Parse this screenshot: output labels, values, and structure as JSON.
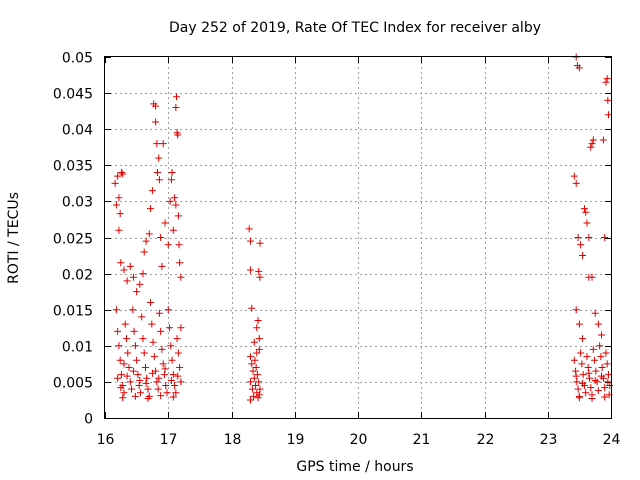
{
  "chart_data": {
    "type": "scatter",
    "title": "Day 252 of 2019, Rate Of TEC Index for receiver alby",
    "xlabel": "GPS time / hours",
    "ylabel": "ROTI / TECUs",
    "xlim": [
      16,
      24
    ],
    "ylim": [
      0,
      0.05
    ],
    "xticks": [
      "16",
      "17",
      "18",
      "19",
      "20",
      "21",
      "22",
      "23",
      "24"
    ],
    "yticks": [
      "0",
      "0.005",
      "0.01",
      "0.015",
      "0.02",
      "0.025",
      "0.03",
      "0.035",
      "0.04",
      "0.045",
      "0.05"
    ],
    "grid": true,
    "marker": "+",
    "marker_color": "#e00000",
    "series": [
      {
        "name": "ROTI",
        "points": [
          [
            16.16,
            0.0325
          ],
          [
            16.18,
            0.0295
          ],
          [
            16.2,
            0.0335
          ],
          [
            16.22,
            0.0305
          ],
          [
            16.24,
            0.0283
          ],
          [
            16.26,
            0.034
          ],
          [
            16.28,
            0.0338
          ],
          [
            16.22,
            0.026
          ],
          [
            16.25,
            0.0215
          ],
          [
            16.3,
            0.0205
          ],
          [
            16.35,
            0.019
          ],
          [
            16.4,
            0.021
          ],
          [
            16.45,
            0.0195
          ],
          [
            16.5,
            0.0175
          ],
          [
            16.55,
            0.0185
          ],
          [
            16.6,
            0.02
          ],
          [
            16.62,
            0.023
          ],
          [
            16.65,
            0.0245
          ],
          [
            16.7,
            0.0255
          ],
          [
            16.72,
            0.029
          ],
          [
            16.75,
            0.0315
          ],
          [
            16.77,
            0.0435
          ],
          [
            16.8,
            0.0432
          ],
          [
            16.8,
            0.041
          ],
          [
            16.82,
            0.038
          ],
          [
            16.85,
            0.036
          ],
          [
            16.83,
            0.034
          ],
          [
            16.86,
            0.033
          ],
          [
            16.88,
            0.025
          ],
          [
            16.9,
            0.021
          ],
          [
            16.92,
            0.038
          ],
          [
            16.95,
            0.027
          ],
          [
            17.0,
            0.024
          ],
          [
            17.03,
            0.03
          ],
          [
            17.05,
            0.033
          ],
          [
            17.06,
            0.034
          ],
          [
            17.08,
            0.026
          ],
          [
            17.1,
            0.0305
          ],
          [
            17.12,
            0.0295
          ],
          [
            17.12,
            0.043
          ],
          [
            17.13,
            0.0445
          ],
          [
            17.14,
            0.0395
          ],
          [
            17.15,
            0.0392
          ],
          [
            17.16,
            0.028
          ],
          [
            17.17,
            0.024
          ],
          [
            17.18,
            0.0215
          ],
          [
            17.2,
            0.0195
          ],
          [
            17.2,
            0.0125
          ],
          [
            16.18,
            0.015
          ],
          [
            16.2,
            0.012
          ],
          [
            16.22,
            0.01
          ],
          [
            16.24,
            0.008
          ],
          [
            16.26,
            0.006
          ],
          [
            16.28,
            0.0045
          ],
          [
            16.3,
            0.0035
          ],
          [
            16.32,
            0.013
          ],
          [
            16.34,
            0.011
          ],
          [
            16.36,
            0.009
          ],
          [
            16.38,
            0.007
          ],
          [
            16.4,
            0.005
          ],
          [
            16.42,
            0.004
          ],
          [
            16.44,
            0.015
          ],
          [
            16.46,
            0.012
          ],
          [
            16.48,
            0.01
          ],
          [
            16.5,
            0.008
          ],
          [
            16.52,
            0.006
          ],
          [
            16.54,
            0.0045
          ],
          [
            16.56,
            0.0035
          ],
          [
            16.58,
            0.014
          ],
          [
            16.6,
            0.011
          ],
          [
            16.62,
            0.009
          ],
          [
            16.64,
            0.007
          ],
          [
            16.66,
            0.0055
          ],
          [
            16.68,
            0.004
          ],
          [
            16.7,
            0.003
          ],
          [
            16.72,
            0.016
          ],
          [
            16.74,
            0.013
          ],
          [
            16.76,
            0.0105
          ],
          [
            16.78,
            0.0085
          ],
          [
            16.8,
            0.0065
          ],
          [
            16.82,
            0.005
          ],
          [
            16.84,
            0.004
          ],
          [
            16.86,
            0.0145
          ],
          [
            16.88,
            0.012
          ],
          [
            16.9,
            0.0095
          ],
          [
            16.92,
            0.0075
          ],
          [
            16.94,
            0.006
          ],
          [
            16.96,
            0.0045
          ],
          [
            16.98,
            0.0035
          ],
          [
            17.0,
            0.015
          ],
          [
            17.02,
            0.0125
          ],
          [
            17.04,
            0.01
          ],
          [
            17.06,
            0.008
          ],
          [
            17.08,
            0.006
          ],
          [
            17.1,
            0.0045
          ],
          [
            17.12,
            0.0035
          ],
          [
            17.14,
            0.011
          ],
          [
            17.16,
            0.009
          ],
          [
            17.18,
            0.007
          ],
          [
            17.2,
            0.005
          ],
          [
            16.2,
            0.0055
          ],
          [
            16.25,
            0.0042
          ],
          [
            16.3,
            0.0075
          ],
          [
            16.35,
            0.0058
          ],
          [
            16.45,
            0.0065
          ],
          [
            16.55,
            0.0052
          ],
          [
            16.65,
            0.0048
          ],
          [
            16.75,
            0.0062
          ],
          [
            16.85,
            0.0055
          ],
          [
            16.95,
            0.0068
          ],
          [
            17.05,
            0.0052
          ],
          [
            17.15,
            0.0058
          ],
          [
            16.28,
            0.0028
          ],
          [
            16.48,
            0.003
          ],
          [
            16.68,
            0.0027
          ],
          [
            16.88,
            0.0031
          ],
          [
            17.08,
            0.0029
          ],
          [
            18.28,
            0.0262
          ],
          [
            18.3,
            0.0245
          ],
          [
            18.3,
            0.0205
          ],
          [
            18.32,
            0.0152
          ],
          [
            18.45,
            0.0242
          ],
          [
            18.43,
            0.0203
          ],
          [
            18.45,
            0.0195
          ],
          [
            18.42,
            0.0135
          ],
          [
            18.4,
            0.0125
          ],
          [
            18.44,
            0.011
          ],
          [
            18.3,
            0.0085
          ],
          [
            18.32,
            0.0075
          ],
          [
            18.34,
            0.0065
          ],
          [
            18.36,
            0.0055
          ],
          [
            18.38,
            0.0045
          ],
          [
            18.4,
            0.0035
          ],
          [
            18.42,
            0.0028
          ],
          [
            18.44,
            0.0095
          ],
          [
            18.3,
            0.005
          ],
          [
            18.33,
            0.004
          ],
          [
            18.35,
            0.003
          ],
          [
            18.37,
            0.008
          ],
          [
            18.39,
            0.007
          ],
          [
            18.41,
            0.006
          ],
          [
            18.43,
            0.005
          ],
          [
            18.45,
            0.004
          ],
          [
            18.3,
            0.0025
          ],
          [
            18.36,
            0.0105
          ],
          [
            18.4,
            0.009
          ],
          [
            18.44,
            0.0032
          ],
          [
            23.45,
            0.05
          ],
          [
            23.47,
            0.0488
          ],
          [
            23.5,
            0.0485
          ],
          [
            23.42,
            0.0335
          ],
          [
            23.45,
            0.0325
          ],
          [
            23.48,
            0.025
          ],
          [
            23.52,
            0.024
          ],
          [
            23.55,
            0.0225
          ],
          [
            23.58,
            0.029
          ],
          [
            23.6,
            0.0285
          ],
          [
            23.62,
            0.027
          ],
          [
            23.65,
            0.025
          ],
          [
            23.68,
            0.0375
          ],
          [
            23.7,
            0.038
          ],
          [
            23.72,
            0.0385
          ],
          [
            23.65,
            0.0195
          ],
          [
            23.7,
            0.0195
          ],
          [
            23.75,
            0.0145
          ],
          [
            23.8,
            0.013
          ],
          [
            23.85,
            0.0115
          ],
          [
            23.88,
            0.0385
          ],
          [
            23.9,
            0.025
          ],
          [
            23.92,
            0.0465
          ],
          [
            23.95,
            0.044
          ],
          [
            23.96,
            0.042
          ],
          [
            23.94,
            0.047
          ],
          [
            23.45,
            0.015
          ],
          [
            23.5,
            0.013
          ],
          [
            23.55,
            0.011
          ],
          [
            23.42,
            0.008
          ],
          [
            23.44,
            0.0065
          ],
          [
            23.46,
            0.005
          ],
          [
            23.48,
            0.004
          ],
          [
            23.5,
            0.003
          ],
          [
            23.52,
            0.009
          ],
          [
            23.54,
            0.0075
          ],
          [
            23.56,
            0.006
          ],
          [
            23.58,
            0.0045
          ],
          [
            23.6,
            0.0035
          ],
          [
            23.62,
            0.0085
          ],
          [
            23.64,
            0.007
          ],
          [
            23.66,
            0.0055
          ],
          [
            23.68,
            0.0042
          ],
          [
            23.7,
            0.0032
          ],
          [
            23.72,
            0.0095
          ],
          [
            23.74,
            0.008
          ],
          [
            23.76,
            0.0065
          ],
          [
            23.78,
            0.005
          ],
          [
            23.8,
            0.0038
          ],
          [
            23.82,
            0.01
          ],
          [
            23.84,
            0.0085
          ],
          [
            23.86,
            0.007
          ],
          [
            23.88,
            0.0055
          ],
          [
            23.9,
            0.0042
          ],
          [
            23.92,
            0.009
          ],
          [
            23.94,
            0.0075
          ],
          [
            23.96,
            0.006
          ],
          [
            23.98,
            0.0045
          ],
          [
            23.97,
            0.0032
          ],
          [
            23.45,
            0.0058
          ],
          [
            23.55,
            0.0048
          ],
          [
            23.65,
            0.0062
          ],
          [
            23.75,
            0.0052
          ],
          [
            23.85,
            0.0058
          ],
          [
            23.95,
            0.005
          ],
          [
            23.5,
            0.0028
          ],
          [
            23.7,
            0.0027
          ],
          [
            23.9,
            0.0029
          ]
        ]
      }
    ]
  }
}
